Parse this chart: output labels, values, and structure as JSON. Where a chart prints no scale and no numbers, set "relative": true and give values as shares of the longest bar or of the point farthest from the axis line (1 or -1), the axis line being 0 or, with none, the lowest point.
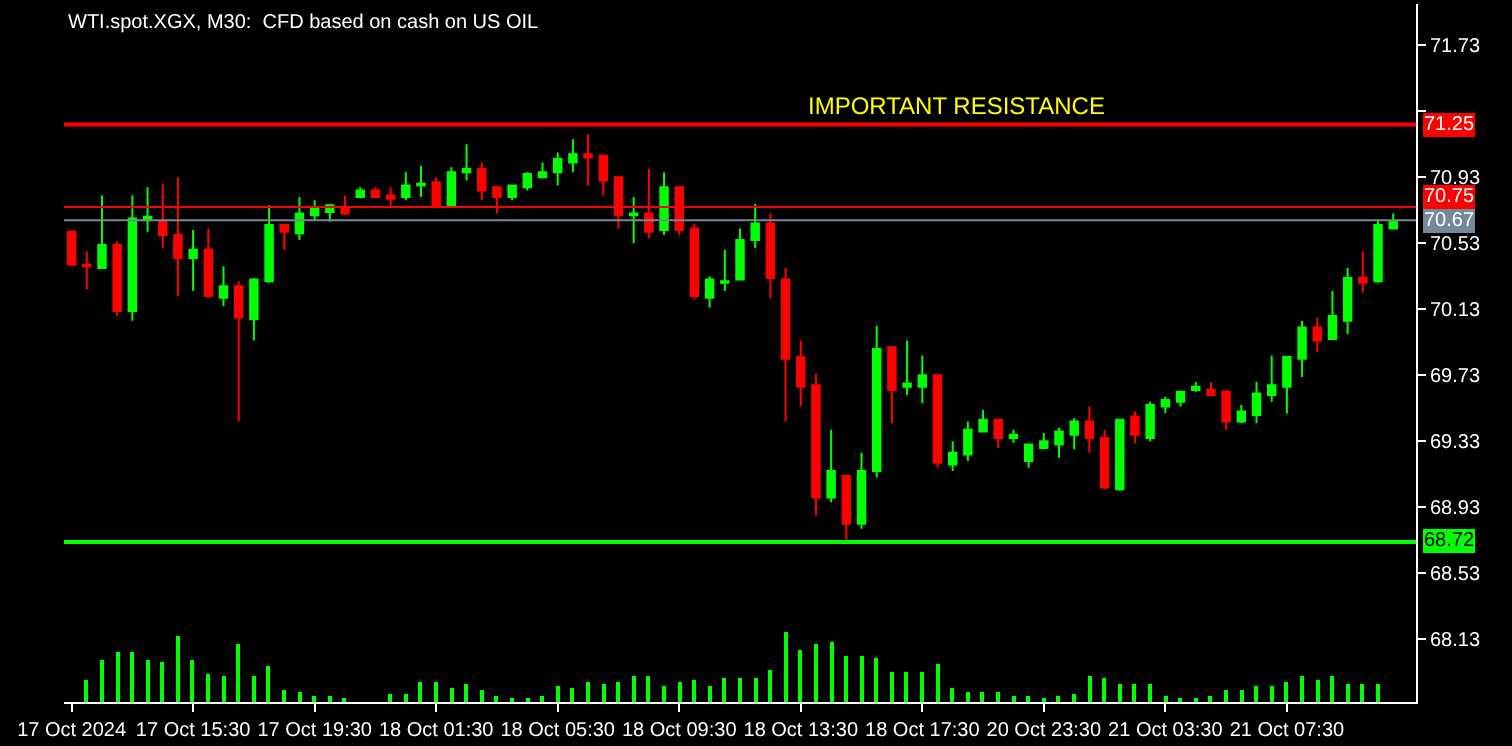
{
  "chart_data": [
    {
      "type": "candlestick",
      "title": "WTI.spot.XGX, M30:  CFD based on cash on US OIL",
      "categories": [
        "17 Oct 2024",
        null,
        null,
        null,
        null,
        null,
        null,
        null,
        "17 Oct 15:30",
        null,
        null,
        null,
        null,
        null,
        null,
        null,
        "17 Oct 19:30",
        null,
        null,
        null,
        null,
        null,
        null,
        null,
        "18 Oct 01:30",
        null,
        null,
        null,
        null,
        null,
        null,
        null,
        "18 Oct 05:30",
        null,
        null,
        null,
        null,
        null,
        null,
        null,
        "18 Oct 09:30",
        null,
        null,
        null,
        null,
        null,
        null,
        null,
        "18 Oct 13:30",
        null,
        null,
        null,
        null,
        null,
        null,
        null,
        "18 Oct 17:30",
        null,
        null,
        null,
        null,
        null,
        null,
        null,
        "20 Oct 23:30",
        null,
        null,
        null,
        null,
        null,
        null,
        null,
        "21 Oct 03:30",
        null,
        null,
        null,
        null,
        null,
        null,
        null,
        "21 Oct 07:30",
        null,
        null,
        null,
        null,
        null,
        null,
        null
      ],
      "ohlc": [
        [
          70.6,
          70.6,
          70.4,
          70.4
        ],
        [
          70.4,
          70.48,
          70.25,
          70.39
        ],
        [
          70.38,
          70.82,
          70.38,
          70.52
        ],
        [
          70.52,
          70.54,
          70.09,
          70.12
        ],
        [
          70.12,
          70.82,
          70.06,
          70.68
        ],
        [
          70.67,
          70.87,
          70.6,
          70.69
        ],
        [
          70.66,
          70.89,
          70.5,
          70.58
        ],
        [
          70.58,
          70.93,
          70.21,
          70.44
        ],
        [
          70.44,
          70.61,
          70.24,
          70.49
        ],
        [
          70.49,
          70.62,
          70.2,
          70.21
        ],
        [
          70.2,
          70.39,
          70.15,
          70.27
        ],
        [
          70.27,
          70.3,
          69.45,
          70.08
        ],
        [
          70.07,
          70.32,
          69.94,
          70.31
        ],
        [
          70.3,
          70.76,
          70.29,
          70.64
        ],
        [
          70.64,
          70.65,
          70.49,
          70.6
        ],
        [
          70.59,
          70.81,
          70.55,
          70.71
        ],
        [
          70.7,
          70.79,
          70.67,
          70.75
        ],
        [
          70.72,
          70.77,
          70.66,
          70.76
        ],
        [
          70.75,
          70.82,
          70.7,
          70.71
        ],
        [
          70.81,
          70.87,
          70.81,
          70.85
        ],
        [
          70.85,
          70.87,
          70.81,
          70.81
        ],
        [
          70.82,
          70.87,
          70.75,
          70.8
        ],
        [
          70.81,
          70.96,
          70.79,
          70.88
        ],
        [
          70.88,
          71.0,
          70.81,
          70.89
        ],
        [
          70.9,
          70.93,
          70.75,
          70.75
        ],
        [
          70.75,
          70.99,
          70.75,
          70.96
        ],
        [
          70.96,
          71.13,
          70.91,
          70.98
        ],
        [
          70.98,
          71.02,
          70.79,
          70.85
        ],
        [
          70.87,
          70.87,
          70.71,
          70.81
        ],
        [
          70.81,
          70.88,
          70.79,
          70.88
        ],
        [
          70.87,
          70.96,
          70.85,
          70.95
        ],
        [
          70.93,
          71.02,
          70.93,
          70.96
        ],
        [
          70.96,
          71.08,
          70.88,
          71.04
        ],
        [
          71.02,
          71.16,
          70.96,
          71.07
        ],
        [
          71.07,
          71.19,
          70.88,
          71.05
        ],
        [
          71.06,
          71.06,
          70.82,
          70.91
        ],
        [
          70.93,
          70.93,
          70.62,
          70.7
        ],
        [
          70.7,
          70.81,
          70.53,
          70.71
        ],
        [
          70.71,
          70.98,
          70.56,
          70.6
        ],
        [
          70.61,
          70.96,
          70.58,
          70.87
        ],
        [
          70.87,
          70.87,
          70.58,
          70.61
        ],
        [
          70.62,
          70.65,
          70.19,
          70.21
        ],
        [
          70.2,
          70.33,
          70.14,
          70.31
        ],
        [
          70.29,
          70.49,
          70.24,
          70.3
        ],
        [
          70.31,
          70.62,
          70.31,
          70.55
        ],
        [
          70.55,
          70.77,
          70.5,
          70.65
        ],
        [
          70.65,
          70.71,
          70.2,
          70.32
        ],
        [
          70.31,
          70.38,
          69.45,
          69.83
        ],
        [
          69.84,
          69.94,
          69.54,
          69.66
        ],
        [
          69.67,
          69.74,
          68.88,
          68.99
        ],
        [
          68.99,
          69.4,
          68.96,
          69.15
        ],
        [
          69.12,
          69.12,
          68.71,
          68.83
        ],
        [
          68.83,
          69.26,
          68.8,
          69.15
        ],
        [
          69.15,
          70.03,
          69.11,
          69.89
        ],
        [
          69.9,
          69.9,
          69.44,
          69.64
        ],
        [
          69.66,
          69.94,
          69.61,
          69.68
        ],
        [
          69.66,
          69.85,
          69.56,
          69.73
        ],
        [
          69.73,
          69.73,
          69.17,
          69.2
        ],
        [
          69.19,
          69.33,
          69.15,
          69.26
        ],
        [
          69.25,
          69.45,
          69.21,
          69.4
        ],
        [
          69.39,
          69.52,
          69.39,
          69.46
        ],
        [
          69.46,
          69.46,
          69.29,
          69.35
        ],
        [
          69.35,
          69.4,
          69.32,
          69.37
        ],
        [
          69.21,
          69.31,
          69.17,
          69.31
        ],
        [
          69.29,
          69.38,
          69.28,
          69.33
        ],
        [
          69.31,
          69.41,
          69.23,
          69.39
        ],
        [
          69.37,
          69.47,
          69.28,
          69.45
        ],
        [
          69.45,
          69.54,
          69.26,
          69.35
        ],
        [
          69.35,
          69.4,
          69.04,
          69.05
        ],
        [
          69.04,
          69.46,
          69.03,
          69.46
        ],
        [
          69.48,
          69.51,
          69.32,
          69.37
        ],
        [
          69.35,
          69.57,
          69.33,
          69.55
        ],
        [
          69.54,
          69.6,
          69.5,
          69.58
        ],
        [
          69.57,
          69.63,
          69.54,
          69.63
        ],
        [
          69.64,
          69.69,
          69.63,
          69.66
        ],
        [
          69.64,
          69.69,
          69.61,
          69.61
        ],
        [
          69.63,
          69.64,
          69.4,
          69.45
        ],
        [
          69.45,
          69.55,
          69.44,
          69.51
        ],
        [
          69.49,
          69.69,
          69.44,
          69.62
        ],
        [
          69.61,
          69.85,
          69.57,
          69.67
        ],
        [
          69.66,
          69.84,
          69.5,
          69.84
        ],
        [
          69.83,
          70.06,
          69.72,
          70.02
        ],
        [
          70.02,
          70.08,
          69.87,
          69.94
        ],
        [
          69.95,
          70.24,
          69.95,
          70.09
        ],
        [
          70.06,
          70.38,
          69.98,
          70.32
        ],
        [
          70.32,
          70.48,
          70.23,
          70.29
        ],
        [
          70.3,
          70.67,
          70.29,
          70.64
        ],
        [
          70.62,
          70.71,
          70.62,
          70.66
        ]
      ],
      "colors": [
        "#ff0000",
        "#ff0000",
        "#00ff00",
        "#ff0000",
        "#00ff00",
        "#00ff00",
        "#ff0000",
        "#ff0000",
        "#00ff00",
        "#ff0000",
        "#00ff00",
        "#ff0000",
        "#00ff00",
        "#00ff00",
        "#ff0000",
        "#00ff00",
        "#00ff00",
        "#00ff00",
        "#ff0000",
        "#00ff00",
        "#ff0000",
        "#ff0000",
        "#00ff00",
        "#00ff00",
        "#ff0000",
        "#00ff00",
        "#00ff00",
        "#ff0000",
        "#ff0000",
        "#00ff00",
        "#00ff00",
        "#00ff00",
        "#00ff00",
        "#00ff00",
        "#ff0000",
        "#ff0000",
        "#ff0000",
        "#00ff00",
        "#ff0000",
        "#00ff00",
        "#ff0000",
        "#ff0000",
        "#00ff00",
        "#00ff00",
        "#00ff00",
        "#00ff00",
        "#ff0000",
        "#ff0000",
        "#ff0000",
        "#ff0000",
        "#00ff00",
        "#ff0000",
        "#00ff00",
        "#00ff00",
        "#ff0000",
        "#00ff00",
        "#00ff00",
        "#ff0000",
        "#00ff00",
        "#00ff00",
        "#00ff00",
        "#ff0000",
        "#00ff00",
        "#00ff00",
        "#00ff00",
        "#00ff00",
        "#00ff00",
        "#ff0000",
        "#ff0000",
        "#00ff00",
        "#ff0000",
        "#00ff00",
        "#00ff00",
        "#00ff00",
        "#00ff00",
        "#ff0000",
        "#ff0000",
        "#00ff00",
        "#00ff00",
        "#00ff00",
        "#00ff00",
        "#00ff00",
        "#ff0000",
        "#00ff00",
        "#00ff00",
        "#ff0000",
        "#00ff00",
        "#00ff00"
      ],
      "ylim": [
        67.75,
        71.98
      ],
      "yticks": [
        68.13,
        68.53,
        68.93,
        69.33,
        69.73,
        70.13,
        70.53,
        70.93,
        {
          "value": 71.33,
          "label": null
        },
        71.73
      ],
      "ref_lines": [
        {
          "axis": "y",
          "value": 71.25,
          "label": "71.25",
          "color": "#ff0000"
        },
        {
          "axis": "y",
          "value": 70.75,
          "label": "70.75",
          "color": "#ff0000"
        },
        {
          "axis": "y",
          "value": 70.67,
          "label": "70.67",
          "color": "#778899"
        },
        {
          "axis": "y",
          "value": 68.72,
          "label": "68.72",
          "color": "#00ff00"
        }
      ],
      "annotations": [
        "IMPORTANT RESISTANCE"
      ],
      "grid": false
    },
    {
      "type": "bar",
      "relative": true,
      "color": "#00ff00",
      "categories": [
        null,
        null,
        null,
        null,
        null,
        null,
        null,
        null,
        null,
        null,
        null,
        null,
        null,
        null,
        null,
        null,
        null,
        null,
        null,
        null,
        null,
        null,
        null,
        null,
        null,
        null,
        null,
        null,
        null,
        null,
        null,
        null,
        null,
        null,
        null,
        null,
        null,
        null,
        null,
        null,
        null,
        null,
        null,
        null,
        null,
        null,
        null,
        null,
        null,
        null,
        null,
        null,
        null,
        null,
        null,
        null,
        null,
        null,
        null,
        null,
        null,
        null,
        null,
        null,
        null,
        null,
        null,
        null,
        null,
        null,
        null,
        null,
        null,
        null,
        null,
        null,
        null,
        null,
        null,
        null,
        null,
        null,
        null,
        null,
        null,
        null,
        null,
        null
      ],
      "values": [
        null,
        0.31,
        0.6,
        0.71,
        0.72,
        0.6,
        0.56,
        0.94,
        0.6,
        0.4,
        0.38,
        0.83,
        0.38,
        0.51,
        0.17,
        0.14,
        0.08,
        0.08,
        0.06,
        null,
        null,
        0.11,
        0.11,
        0.29,
        0.28,
        0.19,
        0.25,
        0.18,
        0.08,
        0.06,
        0.03,
        0.08,
        0.22,
        0.19,
        0.28,
        0.26,
        0.28,
        0.38,
        0.38,
        0.22,
        0.28,
        0.31,
        0.22,
        0.35,
        0.33,
        0.35,
        0.46,
        1,
        0.75,
        0.83,
        0.86,
        0.65,
        0.67,
        0.64,
        0.44,
        0.42,
        0.43,
        0.54,
        0.19,
        0.14,
        0.14,
        0.14,
        0.08,
        0.08,
        0.06,
        0.08,
        0.11,
        0.38,
        0.33,
        0.25,
        0.25,
        0.25,
        0.08,
        0.06,
        0.06,
        0.08,
        0.17,
        0.17,
        0.22,
        0.22,
        0.28,
        0.36,
        0.31,
        0.36,
        0.25,
        0.25,
        0.25,
        null
      ]
    }
  ]
}
